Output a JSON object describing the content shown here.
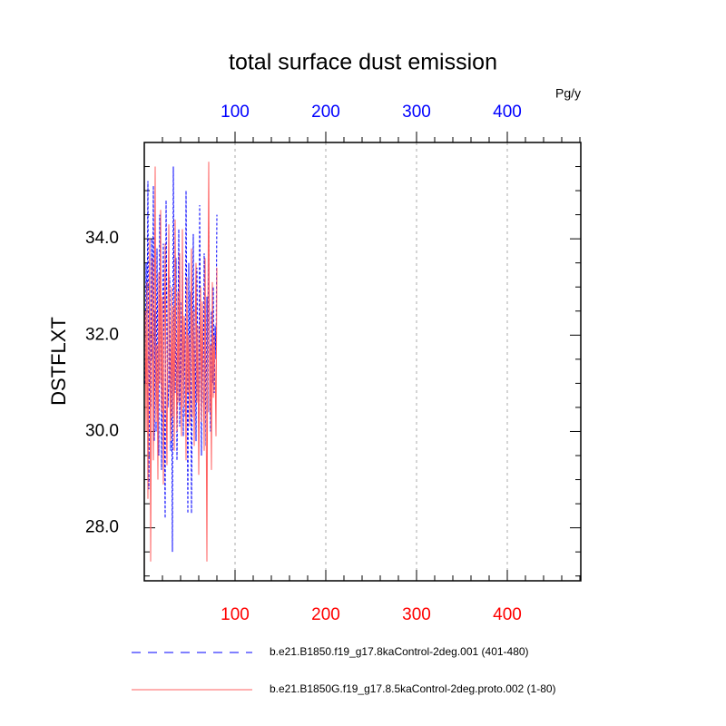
{
  "chart_data": {
    "type": "line",
    "title": "total surface dust emission",
    "ylabel": "DSTFLXT",
    "units": "Pg/y",
    "x": [
      1,
      2,
      3,
      4,
      5,
      6,
      7,
      8,
      9,
      10,
      11,
      12,
      13,
      14,
      15,
      16,
      17,
      18,
      19,
      20,
      21,
      22,
      23,
      24,
      25,
      26,
      27,
      28,
      29,
      30,
      31,
      32,
      33,
      34,
      35,
      36,
      37,
      38,
      39,
      40,
      41,
      42,
      43,
      44,
      45,
      46,
      47,
      48,
      49,
      50,
      51,
      52,
      53,
      54,
      55,
      56,
      57,
      58,
      59,
      60,
      61,
      62,
      63,
      64,
      65,
      66,
      67,
      68,
      69,
      70,
      71,
      72,
      73,
      74,
      75,
      76,
      77,
      78,
      79,
      80
    ],
    "xlim": [
      0,
      481
    ],
    "ylim": [
      26.9,
      36.0
    ],
    "xticks": [
      100,
      200,
      300,
      400
    ],
    "xminorticks": [
      20,
      40,
      60,
      80,
      120,
      140,
      160,
      180,
      220,
      240,
      260,
      280,
      320,
      340,
      360,
      380,
      420,
      440,
      460,
      480
    ],
    "yticks": [
      {
        "value": 28,
        "label": "28.0"
      },
      {
        "value": 30,
        "label": "30.0"
      },
      {
        "value": 32,
        "label": "32.0"
      },
      {
        "value": 34,
        "label": "34.0"
      }
    ],
    "yminorticks": [
      27,
      27.5,
      28.5,
      29,
      29.5,
      30.5,
      31,
      31.5,
      32.5,
      33,
      33.5,
      34.5,
      35,
      35.5
    ],
    "grid": true,
    "top_tick_color": "#0000ff",
    "bottom_tick_color": "#ff0000",
    "series": [
      {
        "name": "b.e21.B1850.f19_g17.8kaControl-2deg.001 (401-480)",
        "color": "#0000ff",
        "dash": true,
        "values": [
          31.0,
          33.5,
          32.0,
          35.2,
          28.8,
          32.4,
          30.5,
          34.0,
          31.5,
          35.1,
          29.8,
          32.5,
          30.0,
          33.8,
          31.2,
          29.5,
          34.5,
          32.8,
          29.2,
          31.8,
          33.9,
          30.6,
          28.2,
          34.8,
          32.0,
          30.5,
          31.0,
          33.2,
          29.6,
          31.9,
          27.5,
          35.5,
          32.2,
          30.8,
          33.6,
          29.4,
          31.5,
          34.2,
          30.1,
          32.7,
          31.0,
          33.8,
          29.9,
          32.4,
          30.3,
          35.0,
          31.6,
          28.3,
          33.5,
          30.7,
          32.9,
          28.3,
          31.4,
          34.1,
          30.2,
          32.6,
          29.8,
          33.4,
          31.1,
          30.0,
          34.7,
          31.8,
          29.5,
          32.3,
          30.6,
          33.7,
          31.3,
          29.7,
          32.8,
          30.4,
          34.4,
          31.7,
          30.0,
          32.5,
          31.0,
          33.0,
          30.8,
          32.2,
          31.5,
          34.5
        ]
      },
      {
        "name": "b.e21.B1850G.f19_g17.8.5kaControl-2deg.proto.002 (1-80)",
        "color": "#ff6060",
        "dash": false,
        "values": [
          32.5,
          30.0,
          33.1,
          28.6,
          31.7,
          34.0,
          27.3,
          31.2,
          33.6,
          29.4,
          32.0,
          35.5,
          30.2,
          31.8,
          29.0,
          33.3,
          31.0,
          34.6,
          30.4,
          32.8,
          28.9,
          31.5,
          33.9,
          30.7,
          29.3,
          32.2,
          34.3,
          31.0,
          29.8,
          33.0,
          30.3,
          32.6,
          29.6,
          34.4,
          31.4,
          30.0,
          32.9,
          30.6,
          33.7,
          31.2,
          29.9,
          34.2,
          30.5,
          32.4,
          31.8,
          29.4,
          33.2,
          30.8,
          32.0,
          30.1,
          31.6,
          33.8,
          30.3,
          32.5,
          29.7,
          31.9,
          33.5,
          30.6,
          32.2,
          29.1,
          31.4,
          33.0,
          30.2,
          32.7,
          31.1,
          29.6,
          33.6,
          30.9,
          27.3,
          32.4,
          35.6,
          30.4,
          31.8,
          29.2,
          33.1,
          30.7,
          32.0,
          31.3,
          29.9,
          33.4
        ]
      }
    ]
  }
}
